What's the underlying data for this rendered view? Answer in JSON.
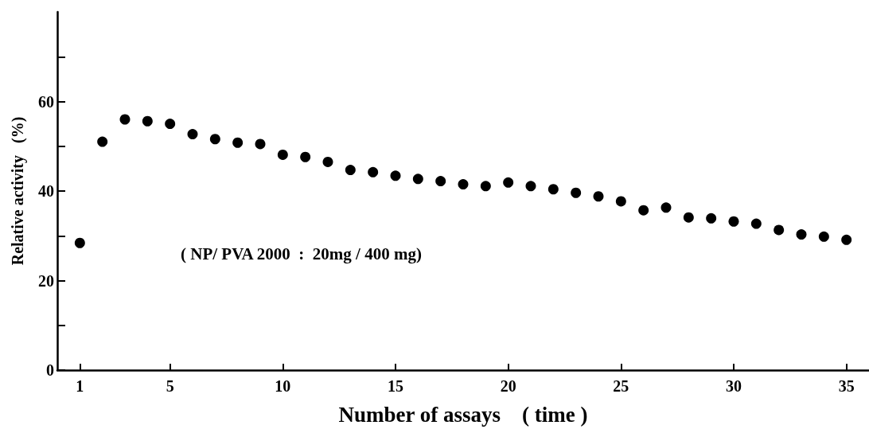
{
  "chart_data": {
    "type": "scatter",
    "xlabel": "Number of assays    ( time )",
    "ylabel": "Relative activity   (%)",
    "annotations": [
      "( NP/ PVA 2000  :  20mg / 400 mg)"
    ],
    "x": [
      1,
      2,
      3,
      4,
      5,
      6,
      7,
      8,
      9,
      10,
      11,
      12,
      13,
      14,
      15,
      16,
      17,
      18,
      19,
      20,
      21,
      22,
      23,
      24,
      25,
      26,
      27,
      28,
      29,
      30,
      31,
      32,
      33,
      34,
      35
    ],
    "series": [
      {
        "color": "#000000",
        "values": [
          28.4,
          51,
          56,
          55.6,
          55,
          52.7,
          51.6,
          50.8,
          50.5,
          48.1,
          47.6,
          46.5,
          44.7,
          44.2,
          43.4,
          42.7,
          42.2,
          41.5,
          41.1,
          41.9,
          41.1,
          40.4,
          39.6,
          38.8,
          37.7,
          35.7,
          36.3,
          34.1,
          33.9,
          33.2,
          32.7,
          31.3,
          30.3,
          29.8,
          29.1
        ]
      }
    ],
    "xlim": [
      0,
      36
    ],
    "xticks": [
      1,
      5,
      10,
      15,
      20,
      25,
      30,
      35
    ],
    "ylim": [
      0,
      80
    ],
    "yticks": [
      0,
      {
        "value": 10,
        "label": null
      },
      20,
      {
        "value": 30,
        "label": null
      },
      40,
      {
        "value": 50,
        "label": null
      },
      60,
      {
        "value": 70,
        "label": null
      }
    ],
    "grid": false,
    "marker": "circle"
  }
}
